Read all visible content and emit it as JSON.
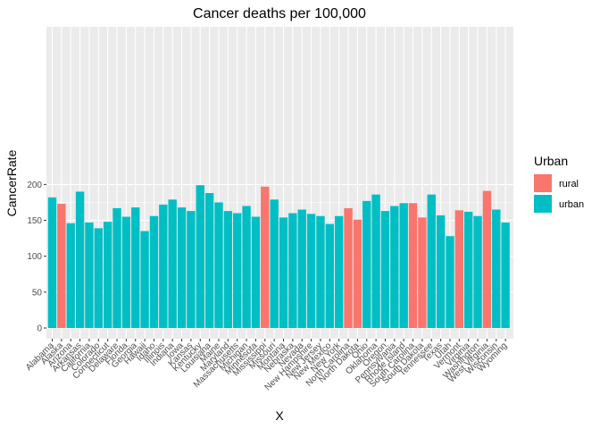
{
  "chart_data": {
    "type": "bar",
    "title": "Cancer deaths per 100,000",
    "xlabel": "X",
    "ylabel": "CancerRate",
    "ylim": [
      0,
      210
    ],
    "y_ticks": [
      0,
      50,
      100,
      150,
      200
    ],
    "grid": true,
    "legend": {
      "title": "Urban",
      "placement": "right",
      "entries": [
        {
          "key": "rural",
          "label": "rural",
          "color": "#F8766D"
        },
        {
          "key": "urban",
          "label": "urban",
          "color": "#00BFC4"
        }
      ]
    },
    "categories": [
      "Alabama",
      "Alaska",
      "Arizona",
      "Arkansas",
      "California",
      "Colorado",
      "Connecticut",
      "Delaware",
      "Florida",
      "Georgia",
      "Hawaii",
      "Idaho",
      "Illinois",
      "Indiana",
      "Iowa",
      "Kansas",
      "Kentucky",
      "Louisiana",
      "Maine",
      "Maryland",
      "Massachusetts",
      "Michigan",
      "Minnesota",
      "Mississippi",
      "Missouri",
      "Montana",
      "Nebraska",
      "Nevada",
      "New Hampshire",
      "New Jersey",
      "New Mexico",
      "New York",
      "North Carolina",
      "North Dakota",
      "Ohio",
      "Oklahoma",
      "Oregon",
      "Pennsylvania",
      "Rhode Island",
      "South Carolina",
      "South Dakota",
      "Tennessee",
      "Texas",
      "Utah",
      "Vermont",
      "Virginia",
      "Washington",
      "West Virginia",
      "Wisconsin",
      "Wyoming"
    ],
    "values": [
      182,
      173,
      146,
      190,
      147,
      139,
      148,
      167,
      155,
      168,
      135,
      156,
      172,
      179,
      168,
      163,
      199,
      188,
      175,
      163,
      160,
      170,
      155,
      197,
      179,
      154,
      160,
      165,
      159,
      156,
      145,
      156,
      167,
      151,
      177,
      186,
      163,
      170,
      174,
      174,
      154,
      186,
      157,
      128,
      164,
      162,
      156,
      191,
      165,
      147
    ],
    "urban": [
      "urban",
      "rural",
      "urban",
      "urban",
      "urban",
      "urban",
      "urban",
      "urban",
      "urban",
      "urban",
      "urban",
      "urban",
      "urban",
      "urban",
      "urban",
      "urban",
      "urban",
      "urban",
      "urban",
      "urban",
      "urban",
      "urban",
      "urban",
      "rural",
      "urban",
      "urban",
      "urban",
      "urban",
      "urban",
      "urban",
      "urban",
      "urban",
      "rural",
      "rural",
      "urban",
      "urban",
      "urban",
      "urban",
      "urban",
      "rural",
      "rural",
      "urban",
      "urban",
      "urban",
      "rural",
      "urban",
      "urban",
      "rural",
      "urban",
      "urban"
    ]
  },
  "colors": {
    "panel_background": "#EBEBEB",
    "grid_major": "#FFFFFF",
    "tick_text": "#4D4D4D"
  }
}
